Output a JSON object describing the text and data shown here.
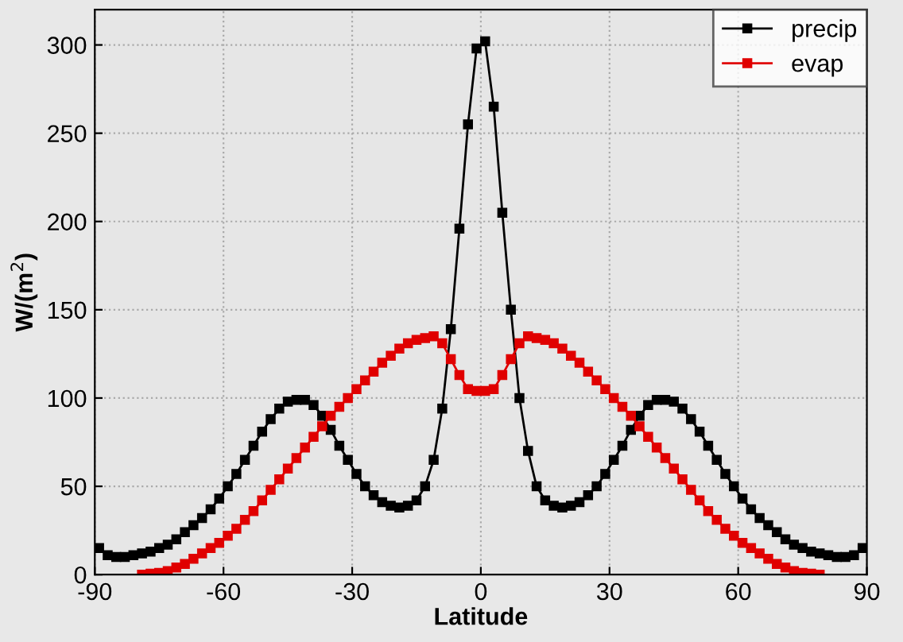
{
  "chart_data": {
    "type": "line",
    "xlabel": "Latitude",
    "ylabel": "W/(m$^{2}$)",
    "xlim": [
      -90,
      90
    ],
    "ylim": [
      0,
      320
    ],
    "xticks": [
      -90,
      -60,
      -30,
      0,
      30,
      60,
      90
    ],
    "yticks": [
      0,
      50,
      100,
      150,
      200,
      250,
      300
    ],
    "grid": true,
    "legend": "top right",
    "marker": "square",
    "line_style": "solid",
    "series": [
      {
        "name": "precip",
        "color": "#000000",
        "x": [
          -89,
          -87,
          -85,
          -83,
          -81,
          -79,
          -77,
          -75,
          -73,
          -71,
          -69,
          -67,
          -65,
          -63,
          -61,
          -59,
          -57,
          -55,
          -53,
          -51,
          -49,
          -47,
          -45,
          -43,
          -41,
          -39,
          -37,
          -35,
          -33,
          -31,
          -29,
          -27,
          -25,
          -23,
          -21,
          -19,
          -17,
          -15,
          -13,
          -11,
          -9,
          -7,
          -5,
          -3,
          -1,
          1,
          3,
          5,
          7,
          9,
          11,
          13,
          15,
          17,
          19,
          21,
          23,
          25,
          27,
          29,
          31,
          33,
          35,
          37,
          39,
          41,
          43,
          45,
          47,
          49,
          51,
          53,
          55,
          57,
          59,
          61,
          63,
          65,
          67,
          69,
          71,
          73,
          75,
          77,
          79,
          81,
          83,
          85,
          87,
          89
        ],
        "values": [
          15,
          11,
          10,
          10,
          11,
          12,
          13,
          15,
          17,
          20,
          24,
          28,
          32,
          37,
          43,
          50,
          57,
          65,
          73,
          81,
          88,
          94,
          98,
          99,
          99,
          96,
          90,
          82,
          73,
          65,
          57,
          50,
          45,
          41,
          39,
          38,
          39,
          42,
          50,
          65,
          94,
          139,
          196,
          255,
          298,
          302,
          265,
          205,
          150,
          100,
          70,
          50,
          42,
          39,
          38,
          39,
          41,
          45,
          50,
          57,
          65,
          73,
          82,
          90,
          96,
          99,
          99,
          98,
          94,
          88,
          81,
          73,
          65,
          57,
          50,
          43,
          37,
          32,
          28,
          24,
          20,
          17,
          15,
          13,
          12,
          11,
          10,
          10,
          11,
          15
        ]
      },
      {
        "name": "evap",
        "color": "#e00000",
        "x": [
          -79,
          -77,
          -75,
          -73,
          -71,
          -69,
          -67,
          -65,
          -63,
          -61,
          -59,
          -57,
          -55,
          -53,
          -51,
          -49,
          -47,
          -45,
          -43,
          -41,
          -39,
          -37,
          -35,
          -33,
          -31,
          -29,
          -27,
          -25,
          -23,
          -21,
          -19,
          -17,
          -15,
          -13,
          -11,
          -9,
          -7,
          -5,
          -3,
          -1,
          1,
          3,
          5,
          7,
          9,
          11,
          13,
          15,
          17,
          19,
          21,
          23,
          25,
          27,
          29,
          31,
          33,
          35,
          37,
          39,
          41,
          43,
          45,
          47,
          49,
          51,
          53,
          55,
          57,
          59,
          61,
          63,
          65,
          67,
          69,
          71,
          73,
          75,
          77,
          79
        ],
        "values": [
          0,
          0.5,
          1,
          2,
          4,
          6,
          9,
          12,
          15,
          18,
          22,
          26,
          31,
          36,
          42,
          48,
          54,
          60,
          66,
          72,
          78,
          84,
          90,
          95,
          100,
          105,
          110,
          115,
          120,
          124,
          128,
          131,
          133,
          134,
          135,
          131,
          122,
          113,
          105,
          104,
          104,
          105,
          113,
          122,
          131,
          135,
          134,
          133,
          131,
          128,
          124,
          120,
          115,
          110,
          105,
          100,
          95,
          90,
          84,
          78,
          72,
          66,
          60,
          54,
          48,
          42,
          36,
          31,
          26,
          22,
          18,
          15,
          12,
          9,
          6,
          4,
          2,
          1,
          0.5,
          0
        ]
      }
    ]
  }
}
